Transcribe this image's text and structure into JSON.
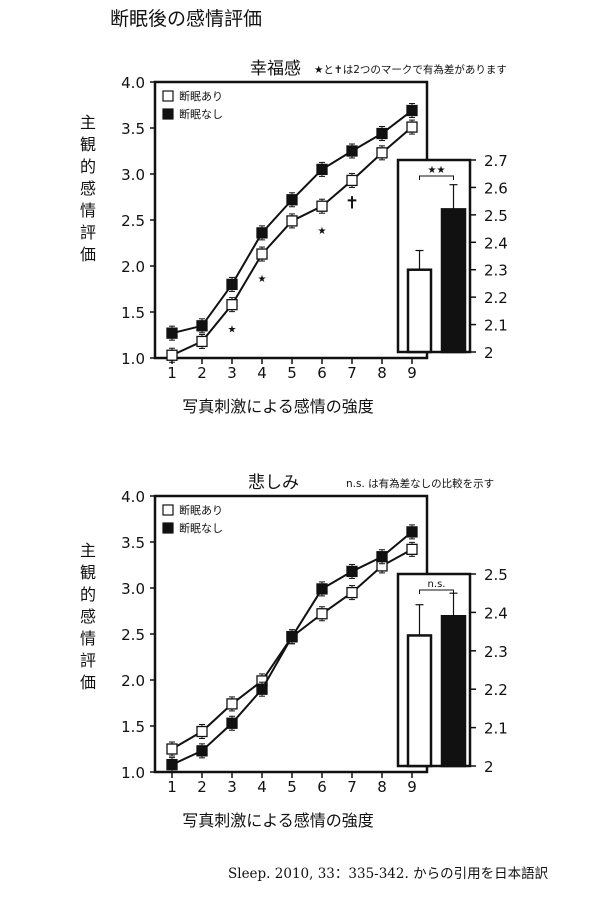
{
  "page_title": "断眠後の感情評価",
  "source_note": "Sleep. 2010, 33：335-342. からの引用を日本語訳",
  "chart_data": [
    {
      "type": "line",
      "title": "幸福感",
      "note": "★と✝は2つのマークで有為差があります",
      "xlabel": "写真刺激による感情の強度",
      "ylabel": "主観的感情評価",
      "categories": [
        "1",
        "2",
        "3",
        "4",
        "5",
        "6",
        "7",
        "8",
        "9"
      ],
      "ylim": [
        1.0,
        4.0
      ],
      "yticks": [
        "1.0",
        "1.5",
        "2.0",
        "2.5",
        "3.0",
        "3.5",
        "4.0"
      ],
      "legend_position": "top-left",
      "series": [
        {
          "name": "断眠あり",
          "marker": "open-square",
          "values": [
            1.03,
            1.18,
            1.58,
            2.13,
            2.49,
            2.65,
            2.93,
            3.23,
            3.51
          ]
        },
        {
          "name": "断眠なし",
          "marker": "filled-square",
          "values": [
            1.27,
            1.35,
            1.8,
            2.36,
            2.72,
            3.05,
            3.25,
            3.44,
            3.69
          ]
        }
      ],
      "significance": [
        {
          "x": "3",
          "mark": "★"
        },
        {
          "x": "4",
          "mark": "★"
        },
        {
          "x": "6",
          "mark": "★"
        },
        {
          "x": "7",
          "mark": "✝"
        }
      ],
      "inset": {
        "type": "bar",
        "ylim": [
          2.0,
          2.7
        ],
        "yticks": [
          "2",
          "2.1",
          "2.2",
          "2.3",
          "2.4",
          "2.5",
          "2.6",
          "2.7"
        ],
        "values": [
          2.3,
          2.52
        ],
        "errors": [
          0.07,
          0.09
        ],
        "sig_label": "★★"
      }
    },
    {
      "type": "line",
      "title": "悲しみ",
      "note": "n.s. は有為差なしの比較を示す",
      "xlabel": "写真刺激による感情の強度",
      "ylabel": "主観的感情評価",
      "categories": [
        "1",
        "2",
        "3",
        "4",
        "5",
        "6",
        "7",
        "8",
        "9"
      ],
      "ylim": [
        1.0,
        4.0
      ],
      "yticks": [
        "1.0",
        "1.5",
        "2.0",
        "2.5",
        "3.0",
        "3.5",
        "4.0"
      ],
      "legend_position": "top-left",
      "series": [
        {
          "name": "断眠あり",
          "marker": "open-square",
          "values": [
            1.25,
            1.44,
            1.74,
            1.99,
            2.47,
            2.72,
            2.95,
            3.24,
            3.42
          ]
        },
        {
          "name": "断眠なし",
          "marker": "filled-square",
          "values": [
            1.08,
            1.23,
            1.53,
            1.9,
            2.47,
            2.99,
            3.18,
            3.34,
            3.61
          ]
        }
      ],
      "inset": {
        "type": "bar",
        "ylim": [
          2.0,
          2.5
        ],
        "yticks": [
          "2",
          "2.1",
          "2.2",
          "2.3",
          "2.4",
          "2.5"
        ],
        "values": [
          2.34,
          2.39
        ],
        "errors": [
          0.08,
          0.06
        ],
        "sig_label": "n.s."
      }
    }
  ]
}
